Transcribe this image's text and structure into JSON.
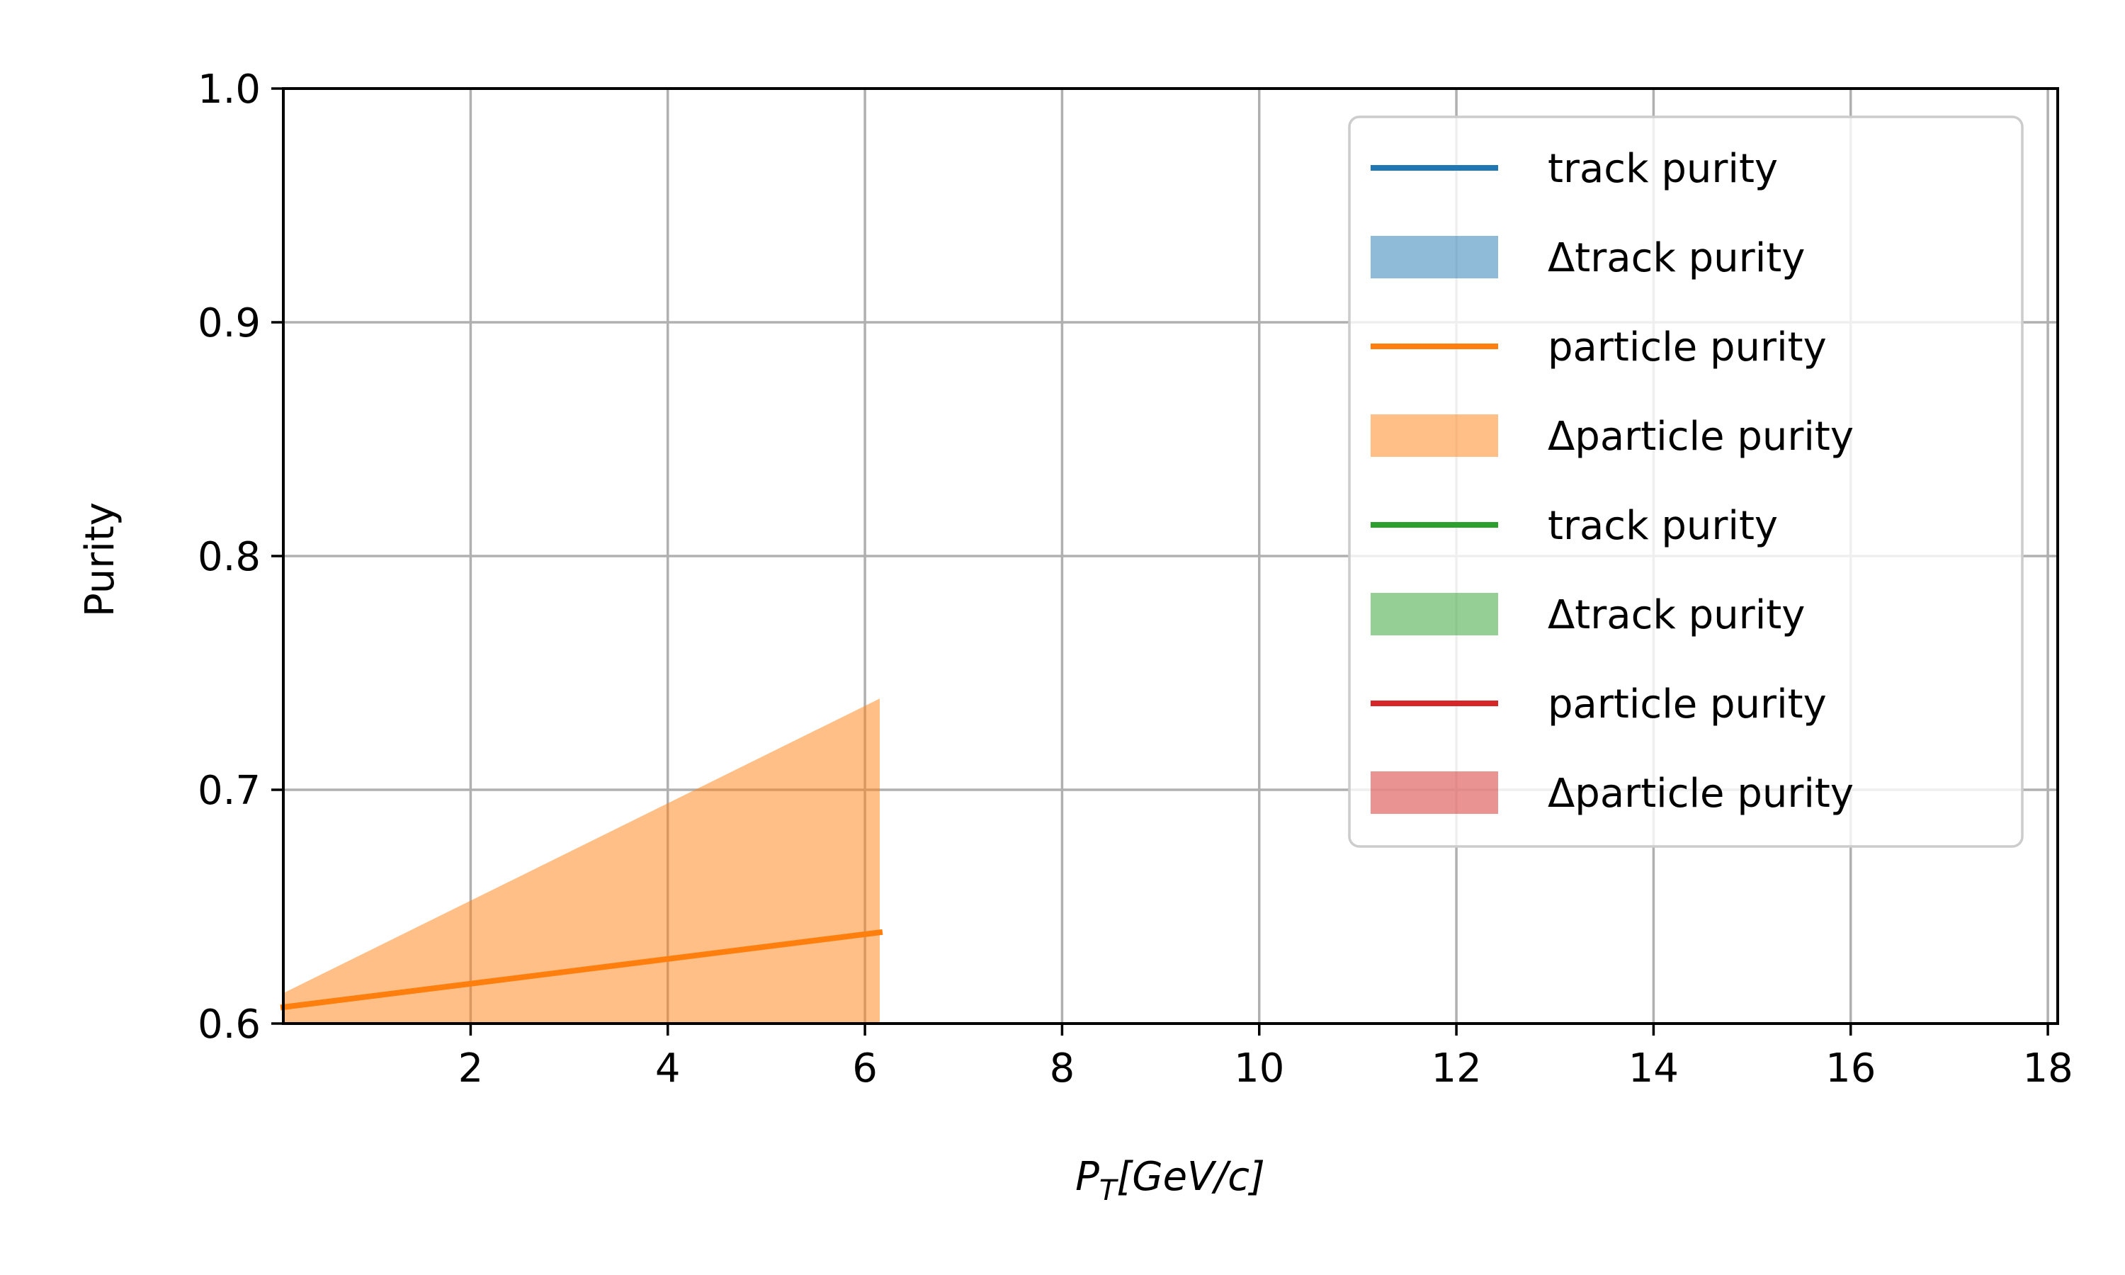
{
  "chart_data": {
    "type": "line",
    "title": "",
    "xlabel": "P_T[GeV/c]",
    "xlabel_main": "P",
    "xlabel_sub": "T",
    "xlabel_rest": "[GeV/c]",
    "ylabel": "Purity",
    "xlim": [
      0.1,
      18.1
    ],
    "ylim": [
      0.6,
      1.0
    ],
    "xticks": [
      2,
      4,
      6,
      8,
      10,
      12,
      14,
      16,
      18
    ],
    "xtick_labels": [
      "2",
      "4",
      "6",
      "8",
      "10",
      "12",
      "14",
      "16",
      "18"
    ],
    "yticks": [
      0.6,
      0.7,
      0.8,
      0.9,
      1.0
    ],
    "ytick_labels": [
      "0.6",
      "0.7",
      "0.8",
      "0.9",
      "1.0"
    ],
    "grid": true,
    "legend_position": "upper-right",
    "series": [
      {
        "name": "track purity",
        "kind": "line",
        "color": "#1f77b4",
        "x": [],
        "y": []
      },
      {
        "name": "Δtrack purity",
        "kind": "band",
        "color": "#1f77b4",
        "x": [],
        "lower": [],
        "upper": []
      },
      {
        "name": "particle purity",
        "kind": "line",
        "color": "#ff7f0e",
        "x": [
          0.1,
          6.15
        ],
        "y": [
          0.607,
          0.639
        ]
      },
      {
        "name": "Δparticle purity",
        "kind": "band",
        "color": "#ff7f0e",
        "x": [
          0.1,
          6.15
        ],
        "lower": [
          0.6,
          0.6
        ],
        "upper": [
          0.613,
          0.739
        ]
      },
      {
        "name": "track purity",
        "kind": "line",
        "color": "#2ca02c",
        "x": [],
        "y": []
      },
      {
        "name": "Δtrack purity",
        "kind": "band",
        "color": "#2ca02c",
        "x": [],
        "lower": [],
        "upper": []
      },
      {
        "name": "particle purity",
        "kind": "line",
        "color": "#d62728",
        "x": [],
        "y": []
      },
      {
        "name": "Δparticle purity",
        "kind": "band",
        "color": "#d62728",
        "x": [],
        "lower": [],
        "upper": []
      }
    ]
  }
}
